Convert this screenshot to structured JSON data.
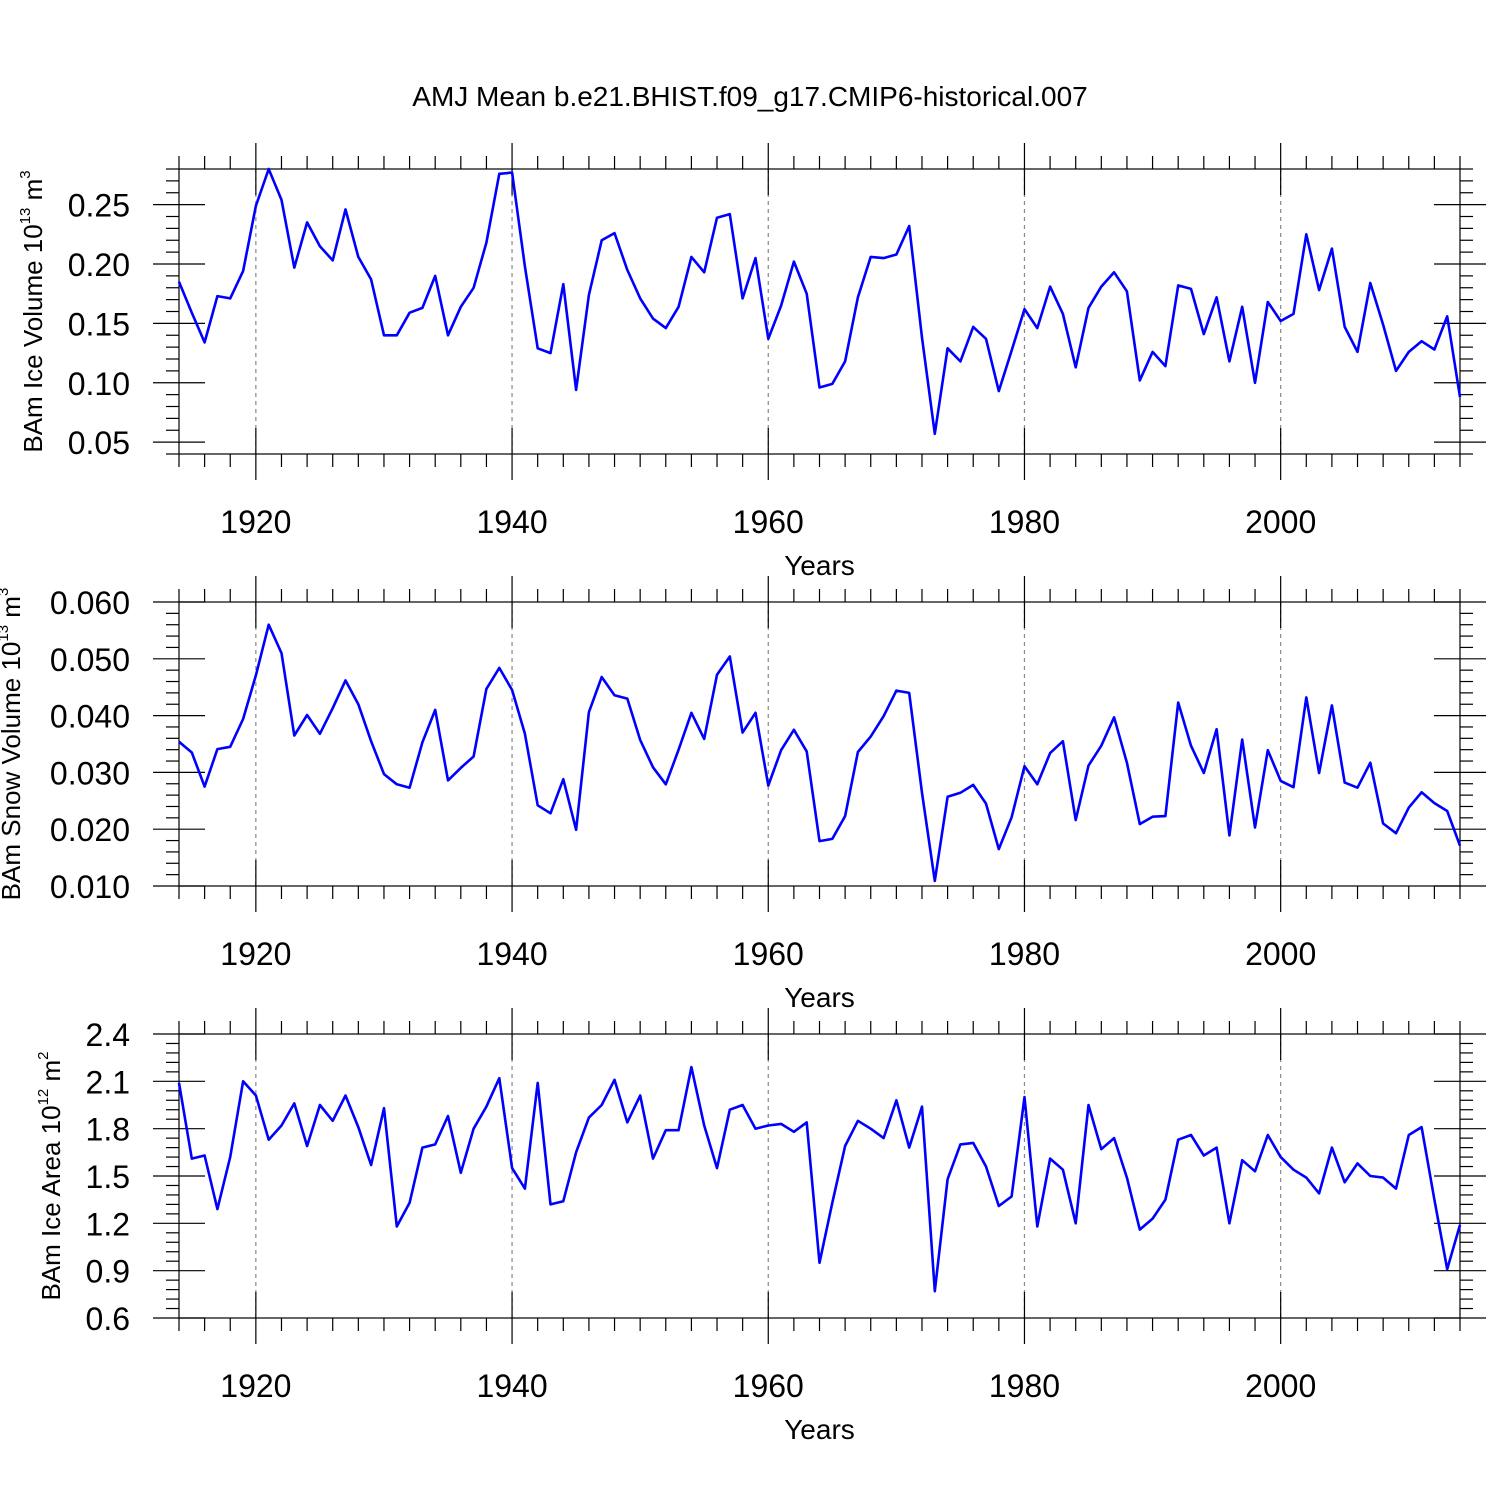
{
  "title": "AMJ Mean b.e21.BHIST.f09_g17.CMIP6-historical.007",
  "colors": {
    "line": "#0000ff",
    "grid": "#888888",
    "axis": "#000000"
  },
  "chart_data": [
    {
      "type": "line",
      "title": "AMJ Mean b.e21.BHIST.f09_g17.CMIP6-historical.007",
      "xlabel": "Years",
      "ylabel_parts": [
        "BAm Ice Volume 10",
        "13",
        " m",
        "3"
      ],
      "xlim": [
        1914,
        2014
      ],
      "ylim": [
        0.04,
        0.28
      ],
      "xticks": [
        1920,
        1940,
        1960,
        1980,
        2000
      ],
      "xtick_labels": [
        "1920",
        "1940",
        "1960",
        "1980",
        "2000"
      ],
      "yticks": [
        0.05,
        0.1,
        0.15,
        0.2,
        0.25
      ],
      "ytick_labels": [
        "0.05",
        "0.10",
        "0.15",
        "0.20",
        "0.25"
      ],
      "x_start": 1914,
      "values": [
        0.185,
        0.159,
        0.134,
        0.173,
        0.171,
        0.194,
        0.249,
        0.28,
        0.254,
        0.197,
        0.235,
        0.215,
        0.203,
        0.246,
        0.206,
        0.187,
        0.14,
        0.14,
        0.159,
        0.163,
        0.19,
        0.14,
        0.164,
        0.18,
        0.218,
        0.276,
        0.277,
        0.198,
        0.129,
        0.125,
        0.183,
        0.094,
        0.174,
        0.22,
        0.226,
        0.195,
        0.171,
        0.154,
        0.146,
        0.164,
        0.206,
        0.193,
        0.239,
        0.242,
        0.171,
        0.205,
        0.137,
        0.165,
        0.202,
        0.175,
        0.096,
        0.099,
        0.118,
        0.172,
        0.206,
        0.205,
        0.208,
        0.232,
        0.138,
        0.057,
        0.129,
        0.118,
        0.147,
        0.137,
        0.093,
        0.127,
        0.162,
        0.146,
        0.181,
        0.158,
        0.113,
        0.163,
        0.181,
        0.193,
        0.177,
        0.102,
        0.126,
        0.114,
        0.182,
        0.179,
        0.141,
        0.172,
        0.118,
        0.164,
        0.1,
        0.168,
        0.152,
        0.158,
        0.225,
        0.178,
        0.213,
        0.147,
        0.126,
        0.184,
        0.149,
        0.11,
        0.126,
        0.135,
        0.128,
        0.156,
        0.088
      ]
    },
    {
      "type": "line",
      "xlabel": "Years",
      "ylabel_parts": [
        "BAm Snow Volume 10",
        "13",
        " m",
        "3"
      ],
      "xlim": [
        1914,
        2014
      ],
      "ylim": [
        0.01,
        0.06
      ],
      "xticks": [
        1920,
        1940,
        1960,
        1980,
        2000
      ],
      "xtick_labels": [
        "1920",
        "1940",
        "1960",
        "1980",
        "2000"
      ],
      "yticks": [
        0.01,
        0.02,
        0.03,
        0.04,
        0.05,
        0.06
      ],
      "ytick_labels": [
        "0.010",
        "0.020",
        "0.030",
        "0.040",
        "0.050",
        "0.060"
      ],
      "x_start": 1914,
      "values": [
        0.0354,
        0.0335,
        0.0275,
        0.0341,
        0.0345,
        0.0394,
        0.0471,
        0.056,
        0.051,
        0.0365,
        0.0401,
        0.0368,
        0.0413,
        0.0462,
        0.042,
        0.0355,
        0.0297,
        0.0279,
        0.0273,
        0.0353,
        0.041,
        0.0286,
        0.0308,
        0.0328,
        0.0447,
        0.0484,
        0.0445,
        0.0368,
        0.0242,
        0.0228,
        0.0288,
        0.0199,
        0.0406,
        0.0468,
        0.0436,
        0.043,
        0.0357,
        0.0309,
        0.0279,
        0.034,
        0.0405,
        0.0359,
        0.0472,
        0.0504,
        0.037,
        0.0405,
        0.0277,
        0.0339,
        0.0375,
        0.0337,
        0.0179,
        0.0183,
        0.0223,
        0.0336,
        0.0363,
        0.0399,
        0.0444,
        0.044,
        0.0264,
        0.0109,
        0.0257,
        0.0264,
        0.0278,
        0.0245,
        0.0165,
        0.0221,
        0.0311,
        0.0279,
        0.0334,
        0.0355,
        0.0216,
        0.0312,
        0.0347,
        0.0397,
        0.0317,
        0.0209,
        0.0222,
        0.0223,
        0.0423,
        0.0347,
        0.0299,
        0.0376,
        0.0189,
        0.0358,
        0.0203,
        0.0339,
        0.0285,
        0.0274,
        0.0432,
        0.0299,
        0.0418,
        0.0282,
        0.0273,
        0.0317,
        0.021,
        0.0193,
        0.0238,
        0.0265,
        0.0246,
        0.0232,
        0.0171
      ]
    },
    {
      "type": "line",
      "xlabel": "Years",
      "ylabel_parts": [
        "BAm Ice Area 10",
        "12",
        " m",
        "2"
      ],
      "xlim": [
        1914,
        2014
      ],
      "ylim": [
        0.6,
        2.4
      ],
      "xticks": [
        1920,
        1940,
        1960,
        1980,
        2000
      ],
      "xtick_labels": [
        "1920",
        "1940",
        "1960",
        "1980",
        "2000"
      ],
      "yticks": [
        0.6,
        0.9,
        1.2,
        1.5,
        1.8,
        2.1,
        2.4
      ],
      "ytick_labels": [
        "0.6",
        "0.9",
        "1.2",
        "1.5",
        "1.8",
        "2.1",
        "2.4"
      ],
      "x_start": 1914,
      "values": [
        2.09,
        1.61,
        1.63,
        1.29,
        1.62,
        2.1,
        2.01,
        1.73,
        1.82,
        1.96,
        1.69,
        1.95,
        1.85,
        2.01,
        1.81,
        1.57,
        1.93,
        1.18,
        1.33,
        1.68,
        1.7,
        1.88,
        1.52,
        1.8,
        1.94,
        2.12,
        1.55,
        1.42,
        2.09,
        1.32,
        1.34,
        1.65,
        1.87,
        1.95,
        2.11,
        1.84,
        2.01,
        1.61,
        1.79,
        1.79,
        2.19,
        1.82,
        1.55,
        1.92,
        1.95,
        1.8,
        1.82,
        1.83,
        1.78,
        1.84,
        0.95,
        1.33,
        1.69,
        1.85,
        1.8,
        1.74,
        1.98,
        1.68,
        1.94,
        0.77,
        1.48,
        1.7,
        1.71,
        1.56,
        1.31,
        1.37,
        2.0,
        1.18,
        1.61,
        1.54,
        1.2,
        1.95,
        1.67,
        1.74,
        1.49,
        1.16,
        1.23,
        1.35,
        1.73,
        1.76,
        1.63,
        1.68,
        1.2,
        1.6,
        1.53,
        1.76,
        1.62,
        1.54,
        1.49,
        1.39,
        1.68,
        1.46,
        1.58,
        1.5,
        1.49,
        1.42,
        1.76,
        1.81,
        1.35,
        0.91,
        1.19
      ]
    }
  ]
}
